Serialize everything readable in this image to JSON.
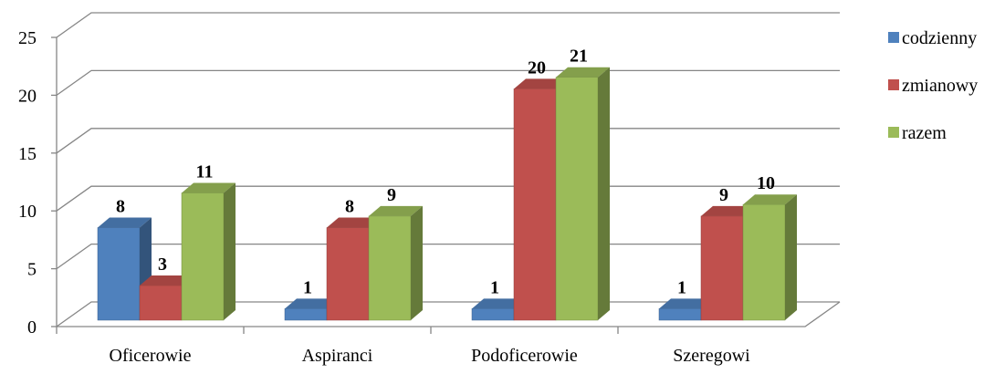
{
  "chart_data": {
    "type": "bar",
    "title": "",
    "xlabel": "",
    "ylabel": "",
    "categories": [
      "Oficerowie",
      "Aspiranci",
      "Podoficerowie",
      "Szeregowi"
    ],
    "series": [
      {
        "name": "codzienny",
        "values": [
          8,
          1,
          1,
          1
        ],
        "color": "#4F81BD"
      },
      {
        "name": "zmianowy",
        "values": [
          3,
          8,
          20,
          9
        ],
        "color": "#C0504D"
      },
      {
        "name": "razem",
        "values": [
          11,
          9,
          21,
          10
        ],
        "color": "#9BBB59"
      }
    ],
    "ylim": [
      0,
      25
    ],
    "yticks": [
      "0",
      "5",
      "10",
      "15",
      "20",
      "25"
    ],
    "grid": true,
    "legend_position": "right",
    "style": "3d-clustered-column"
  }
}
